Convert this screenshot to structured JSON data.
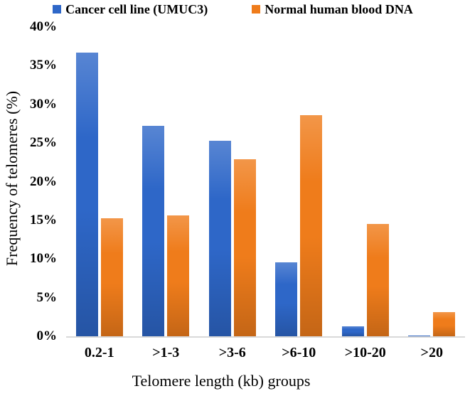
{
  "figure": {
    "background": "#ffffff",
    "axis_line_color": "#d9d9d9",
    "text_color": "#000000"
  },
  "chart_data": {
    "type": "bar",
    "title": "",
    "categories": [
      "0.2-1",
      ">1-3",
      ">3-6",
      ">6-10",
      ">10-20",
      ">20"
    ],
    "series": [
      {
        "name": "Cancer cell line (UMUC3)",
        "color": "#2e67c8",
        "values": [
          36.7,
          27.2,
          25.3,
          9.6,
          1.3,
          0.1
        ]
      },
      {
        "name": "Normal human blood DNA",
        "color": "#ef7c1b",
        "values": [
          15.3,
          15.6,
          22.9,
          28.6,
          14.5,
          3.1
        ]
      }
    ],
    "xlabel": "Telomere length (kb) groups",
    "ylabel": "Frequency of telomeres (%)",
    "ylim": [
      0,
      40
    ],
    "ytick_step": 5,
    "ytick_suffix": "%",
    "grid": false,
    "legend_position": "top"
  }
}
